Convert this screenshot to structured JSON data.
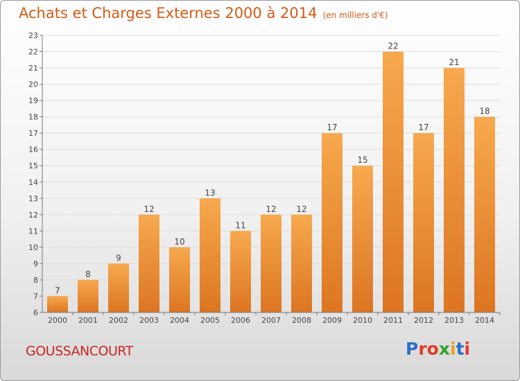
{
  "header": {
    "title": "Achats et Charges Externes 2000 à 2014",
    "unit": "(en milliers d'€)"
  },
  "footer": {
    "commune": "GOUSSANCOURT",
    "logo_text": "Proxiti"
  },
  "colors": {
    "title": "#d65a14",
    "commune": "#c8251f",
    "bar_light": "#f7a94e",
    "bar_dark": "#dc7522",
    "logo": [
      "#2a6fc4",
      "#e03b2a",
      "#e03b2a",
      "#36a12f",
      "#e8a020",
      "#2a6fc4",
      "#e03b2a"
    ]
  },
  "chart_data": {
    "type": "bar",
    "categories": [
      "2000",
      "2001",
      "2002",
      "2003",
      "2004",
      "2005",
      "2006",
      "2007",
      "2008",
      "2009",
      "2010",
      "2011",
      "2012",
      "2013",
      "2014"
    ],
    "values": [
      7,
      8,
      9,
      12,
      10,
      13,
      11,
      12,
      12,
      17,
      15,
      22,
      17,
      21,
      18
    ],
    "ylim": [
      6,
      23
    ],
    "yticks": [
      6,
      7,
      8,
      9,
      10,
      11,
      12,
      13,
      14,
      15,
      16,
      17,
      18,
      19,
      20,
      21,
      22,
      23
    ],
    "grid": true,
    "data_labels": true
  }
}
